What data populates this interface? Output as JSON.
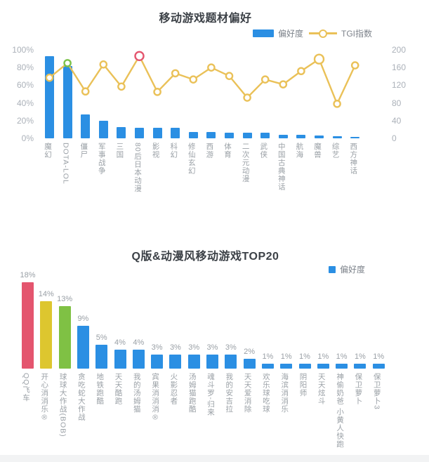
{
  "palette": {
    "bar_blue": "#2b8fe3",
    "line_gold": "#eac158",
    "marker_green": "#7cc24a",
    "marker_red": "#e4556e",
    "bar_red": "#e4556e",
    "bar_yellow": "#ddc62f",
    "bar_green": "#7fc144"
  },
  "chart_data": [
    {
      "type": "bar+line",
      "title": "移动游戏题材偏好",
      "legend": [
        {
          "label": "偏好度",
          "kind": "bar",
          "color": "#2b8fe3"
        },
        {
          "label": "TGI指数",
          "kind": "line",
          "color": "#eac158"
        }
      ],
      "left_axis": {
        "ticks": [
          "0%",
          "20%",
          "40%",
          "60%",
          "80%",
          "100%"
        ],
        "values": [
          0,
          20,
          40,
          60,
          80,
          100
        ],
        "max": 100
      },
      "right_axis": {
        "ticks": [
          "0",
          "40",
          "80",
          "120",
          "160",
          "200"
        ],
        "values": [
          0,
          40,
          80,
          120,
          160,
          200
        ],
        "max": 200
      },
      "categories": [
        "魔幻",
        "DOTA-LOL",
        "僵尸",
        "军事战争",
        "三国",
        "80后日本动漫",
        "影视",
        "科幻",
        "修仙玄幻",
        "西游",
        "体育",
        "二次元动漫",
        "武侠",
        "中国古典神话",
        "航海",
        "魔兽",
        "综艺",
        "西方神话"
      ],
      "series": [
        {
          "name": "偏好度",
          "unit": "%",
          "values": [
            93,
            82,
            27,
            20,
            13,
            12,
            12,
            12,
            7,
            7,
            6,
            6,
            6,
            4,
            4,
            3,
            2,
            1
          ]
        },
        {
          "name": "TGI指数",
          "unit": "",
          "values": [
            137,
            170,
            106,
            167,
            117,
            186,
            105,
            147,
            133,
            160,
            141,
            92,
            133,
            122,
            152,
            179,
            78,
            165
          ]
        }
      ],
      "marker_styles": [
        {
          "index": 1,
          "style": "green-ring"
        },
        {
          "index": 5,
          "style": "red-ring"
        },
        {
          "index": 15,
          "style": "large-gold"
        }
      ],
      "grid": false,
      "legend_position": "top-right"
    },
    {
      "type": "bar",
      "title": "Q版&动漫风移动游戏TOP20",
      "legend": [
        {
          "label": "偏好度",
          "kind": "square",
          "color": "#2b8fe3"
        }
      ],
      "categories": [
        "QQ飞车",
        "开心消消乐®",
        "球球大作战(BOB)",
        "贪吃蛇大作战",
        "地铁跑酷",
        "天天酷跑",
        "我的汤姆猫",
        "宾果消消消®",
        "火影忍者",
        "汤姆猫跑酷",
        "魂斗罗-归来",
        "我的安吉拉",
        "天天爱消除",
        "欢乐球吃球",
        "海滨消消乐",
        "阴阳师",
        "天天炫斗",
        "神偷奶爸 小黄人快跑",
        "保卫萝卜",
        "保卫萝卜3"
      ],
      "values": [
        18,
        14,
        13,
        9,
        5,
        4,
        4,
        3,
        3,
        3,
        3,
        3,
        2,
        1,
        1,
        1,
        1,
        1,
        1,
        1
      ],
      "value_labels": [
        "18%",
        "14%",
        "13%",
        "9%",
        "5%",
        "4%",
        "4%",
        "3%",
        "3%",
        "3%",
        "3%",
        "3%",
        "2%",
        "1%",
        "1%",
        "1%",
        "1%",
        "1%",
        "1%",
        "1%"
      ],
      "bar_colors": [
        "#e4556e",
        "#ddc62f",
        "#7fc144",
        "#2b8fe3",
        "#2b8fe3",
        "#2b8fe3",
        "#2b8fe3",
        "#2b8fe3",
        "#2b8fe3",
        "#2b8fe3",
        "#2b8fe3",
        "#2b8fe3",
        "#2b8fe3",
        "#2b8fe3",
        "#2b8fe3",
        "#2b8fe3",
        "#2b8fe3",
        "#2b8fe3",
        "#2b8fe3",
        "#2b8fe3"
      ],
      "ylim": [
        0,
        20
      ],
      "grid": false,
      "legend_position": "top-right"
    }
  ]
}
